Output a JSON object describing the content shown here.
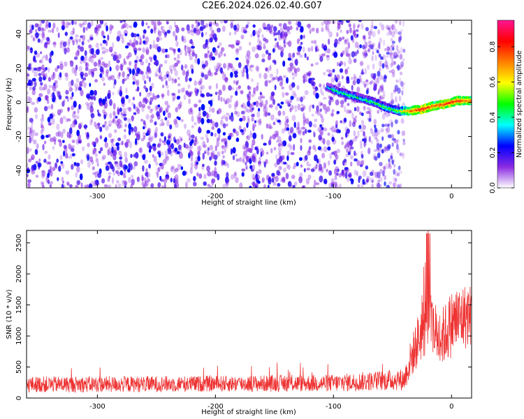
{
  "title": "C2E6.2024.026.02.40.G07",
  "chart_data": [
    {
      "type": "heatmap",
      "name": "spectrogram",
      "xlabel": "Height of straight line (km)",
      "ylabel": "Frequency (Hz)",
      "xlim": [
        -360,
        17
      ],
      "ylim": [
        -50,
        48
      ],
      "xticks": [
        -300,
        -200,
        -100,
        0
      ],
      "xtick_labels": [
        "-300",
        "-200",
        "-100",
        "0"
      ],
      "yticks": [
        -40,
        -20,
        0,
        20,
        40
      ],
      "ytick_labels": [
        "-40",
        "-20",
        "0",
        "20",
        "40"
      ],
      "colorbar": {
        "label": "Normalized spectral amplitude",
        "range": [
          0,
          0.95
        ],
        "ticks": [
          0,
          0.2,
          0.4,
          0.6,
          0.8
        ],
        "tick_labels": [
          "0.0",
          "0.2",
          "0.4",
          "0.6",
          "0.8"
        ],
        "colors": [
          "#ffffff",
          "#8a2be2",
          "#0000ff",
          "#00ffff",
          "#00ff00",
          "#ffff00",
          "#ff8000",
          "#ff0000",
          "#ff1493"
        ]
      },
      "noise_region": {
        "x_range": [
          -360,
          -40
        ],
        "amplitude": [
          0.0,
          0.25
        ]
      },
      "signal_trace": {
        "x": [
          -105,
          -95,
          -85,
          -75,
          -65,
          -55,
          -45,
          -35,
          -25,
          -15,
          -5,
          5,
          17
        ],
        "y": [
          9,
          6,
          4,
          2,
          0,
          -3,
          -5,
          -5,
          -4,
          -2,
          -1,
          1,
          1
        ],
        "amplitude": [
          0.35,
          0.45,
          0.45,
          0.4,
          0.45,
          0.5,
          0.5,
          0.7,
          0.85,
          0.75,
          0.8,
          0.8,
          0.75
        ]
      }
    },
    {
      "type": "line",
      "name": "snr",
      "xlabel": "Height of straight line (km)",
      "ylabel": "SNR (10 * v/v)",
      "xlim": [
        -360,
        17
      ],
      "ylim": [
        0,
        2700
      ],
      "xticks": [
        -300,
        -200,
        -100,
        0
      ],
      "xtick_labels": [
        "-300",
        "-200",
        "-100",
        "0"
      ],
      "yticks": [
        0,
        500,
        1000,
        1500,
        2000,
        2500
      ],
      "ytick_labels": [
        "0",
        "500",
        "1000",
        "1500",
        "2000",
        "2500"
      ],
      "color": "#ee3333",
      "series": [
        {
          "name": "SNR",
          "x": [
            -360,
            -300,
            -200,
            -100,
            -60,
            -40,
            -35,
            -30,
            -25,
            -20,
            -15,
            -10,
            -5,
            0,
            5,
            10,
            17
          ],
          "y": [
            220,
            220,
            230,
            240,
            280,
            300,
            600,
            850,
            1100,
            1300,
            1100,
            950,
            1050,
            1200,
            1250,
            1300,
            1350
          ],
          "spread": [
            130,
            130,
            130,
            140,
            160,
            180,
            300,
            400,
            500,
            600,
            500,
            450,
            500,
            550,
            550,
            550,
            500
          ]
        }
      ]
    }
  ]
}
